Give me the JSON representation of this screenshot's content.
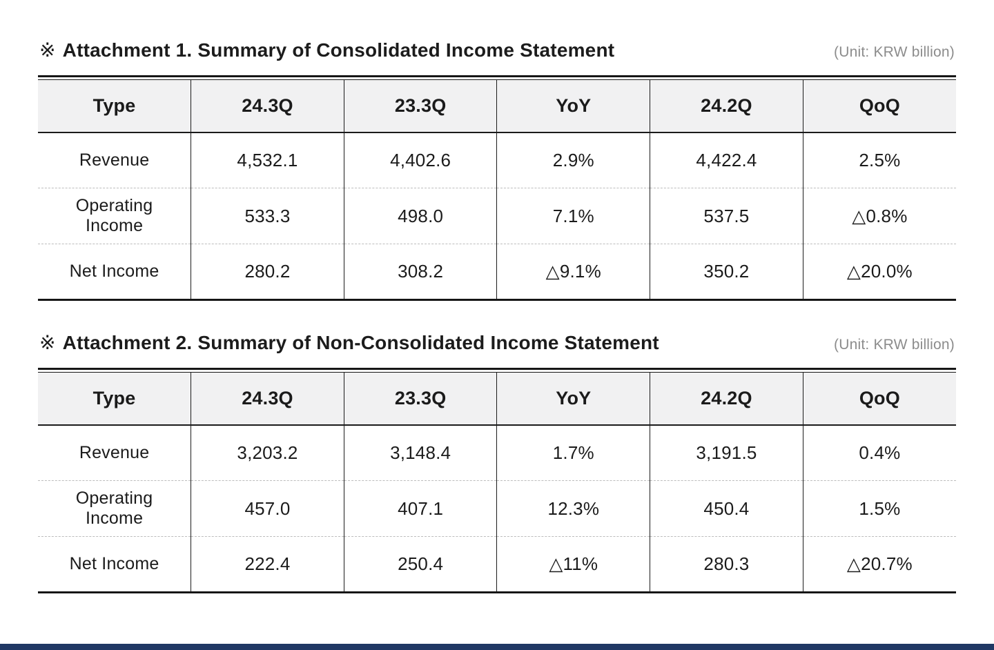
{
  "page": {
    "background": "#ffffff",
    "colors": {
      "header_bg": "#f1f1f2",
      "border_dark": "#161616",
      "dashed_divider": "#bcbcbc",
      "unit_text": "#8c8c8c",
      "title_text": "#1c1c1c",
      "bottom_bar": "#203864"
    }
  },
  "sections": [
    {
      "marker": "※",
      "title": "Attachment 1. Summary of Consolidated Income Statement",
      "unit": "(Unit: KRW billion)",
      "table": {
        "columns": [
          "Type",
          "24.3Q",
          "23.3Q",
          "YoY",
          "24.2Q",
          "QoQ"
        ],
        "rows": [
          {
            "label": "Revenue",
            "values": [
              "4,532.1",
              "4,402.6",
              "2.9%",
              "4,422.4",
              "2.5%"
            ]
          },
          {
            "label": "Operating Income",
            "values": [
              "533.3",
              "498.0",
              "7.1%",
              "537.5",
              "△0.8%"
            ]
          },
          {
            "label": "Net Income",
            "values": [
              "280.2",
              "308.2",
              "△9.1%",
              "350.2",
              "△20.0%"
            ]
          }
        ]
      }
    },
    {
      "marker": "※",
      "title": "Attachment 2. Summary of Non-Consolidated Income Statement",
      "unit": "(Unit: KRW billion)",
      "table": {
        "columns": [
          "Type",
          "24.3Q",
          "23.3Q",
          "YoY",
          "24.2Q",
          "QoQ"
        ],
        "rows": [
          {
            "label": "Revenue",
            "values": [
              "3,203.2",
              "3,148.4",
              "1.7%",
              "3,191.5",
              "0.4%"
            ]
          },
          {
            "label": "Operating Income",
            "values": [
              "457.0",
              "407.1",
              "12.3%",
              "450.4",
              "1.5%"
            ]
          },
          {
            "label": "Net Income",
            "values": [
              "222.4",
              "250.4",
              "△11%",
              "280.3",
              "△20.7%"
            ]
          }
        ]
      }
    }
  ]
}
